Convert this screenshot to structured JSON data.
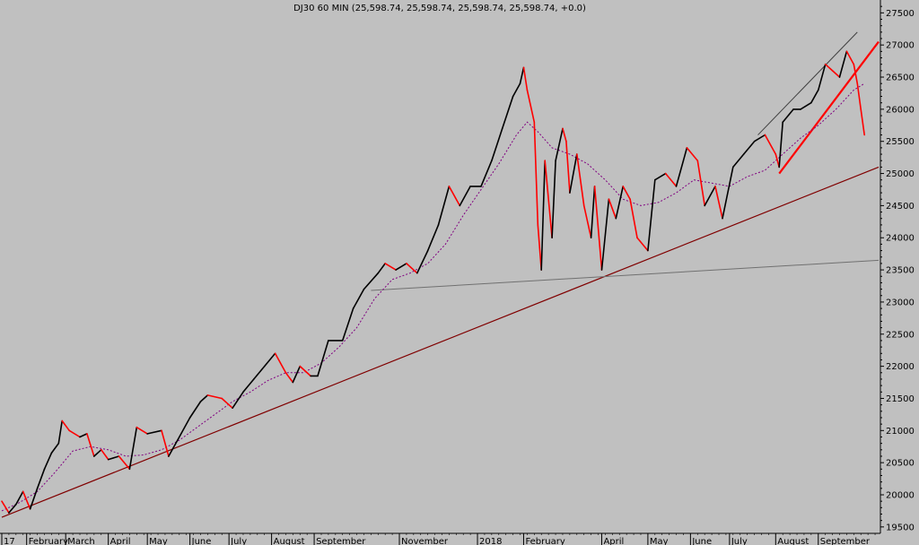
{
  "chart_data": {
    "type": "line",
    "title": "DJ30 60 MIN (25,598.74, 25,598.74, 25,598.74, 25,598.74, +0.0)",
    "xlabel": "",
    "ylabel": "",
    "ylim": [
      19400,
      27700
    ],
    "y_ticks": [
      19500,
      20000,
      20500,
      21000,
      21500,
      22000,
      22500,
      23000,
      23500,
      24000,
      24500,
      25000,
      25500,
      26000,
      26500,
      27000,
      27500
    ],
    "x_ticks": [
      "17",
      "February",
      "March",
      "April",
      "May",
      "June",
      "July",
      "August",
      "September",
      "November",
      "2018",
      "February",
      "April",
      "May",
      "June",
      "July",
      "August",
      "September"
    ],
    "x_tick_index": [
      0,
      7,
      18,
      30,
      41,
      53,
      64,
      76,
      88,
      112,
      134,
      147,
      169,
      182,
      194,
      205,
      218,
      230
    ],
    "x_range": [
      0,
      247
    ],
    "grid": false,
    "colors": {
      "background": "#c0c0c0",
      "price_up": "#000000",
      "price_down": "#ff0000",
      "moving_average": "#800080",
      "trendline": "#800000",
      "horizontal_line": "#707070",
      "recent_trendline": "#ff0000",
      "channel_line": "#404040"
    },
    "series": [
      {
        "key": "price",
        "points": [
          [
            0,
            19900
          ],
          [
            2,
            19720
          ],
          [
            4,
            19850
          ],
          [
            6,
            20050
          ],
          [
            8,
            19780
          ],
          [
            10,
            20100
          ],
          [
            12,
            20400
          ],
          [
            14,
            20650
          ],
          [
            16,
            20800
          ],
          [
            17,
            21150
          ],
          [
            19,
            21000
          ],
          [
            22,
            20900
          ],
          [
            24,
            20950
          ],
          [
            26,
            20600
          ],
          [
            28,
            20700
          ],
          [
            30,
            20550
          ],
          [
            33,
            20600
          ],
          [
            36,
            20400
          ],
          [
            38,
            21050
          ],
          [
            41,
            20950
          ],
          [
            45,
            21000
          ],
          [
            47,
            20600
          ],
          [
            50,
            20900
          ],
          [
            53,
            21200
          ],
          [
            56,
            21450
          ],
          [
            58,
            21550
          ],
          [
            62,
            21500
          ],
          [
            65,
            21350
          ],
          [
            68,
            21600
          ],
          [
            71,
            21800
          ],
          [
            74,
            22000
          ],
          [
            77,
            22200
          ],
          [
            80,
            21900
          ],
          [
            82,
            21750
          ],
          [
            84,
            22000
          ],
          [
            87,
            21850
          ],
          [
            89,
            21850
          ],
          [
            92,
            22400
          ],
          [
            96,
            22400
          ],
          [
            99,
            22900
          ],
          [
            102,
            23200
          ],
          [
            106,
            23450
          ],
          [
            108,
            23600
          ],
          [
            111,
            23500
          ],
          [
            114,
            23600
          ],
          [
            117,
            23450
          ],
          [
            120,
            23800
          ],
          [
            123,
            24200
          ],
          [
            126,
            24800
          ],
          [
            129,
            24500
          ],
          [
            132,
            24800
          ],
          [
            135,
            24800
          ],
          [
            138,
            25200
          ],
          [
            141,
            25700
          ],
          [
            144,
            26200
          ],
          [
            146,
            26400
          ],
          [
            147,
            26650
          ],
          [
            148,
            26300
          ],
          [
            150,
            25800
          ],
          [
            151,
            24200
          ],
          [
            152,
            23500
          ],
          [
            153,
            25200
          ],
          [
            155,
            24000
          ],
          [
            156,
            25200
          ],
          [
            158,
            25700
          ],
          [
            159,
            25500
          ],
          [
            160,
            24700
          ],
          [
            162,
            25300
          ],
          [
            164,
            24500
          ],
          [
            166,
            24000
          ],
          [
            167,
            24800
          ],
          [
            169,
            23500
          ],
          [
            171,
            24600
          ],
          [
            173,
            24300
          ],
          [
            175,
            24800
          ],
          [
            177,
            24600
          ],
          [
            179,
            24000
          ],
          [
            182,
            23800
          ],
          [
            184,
            24900
          ],
          [
            187,
            25000
          ],
          [
            190,
            24800
          ],
          [
            193,
            25400
          ],
          [
            196,
            25200
          ],
          [
            198,
            24500
          ],
          [
            201,
            24800
          ],
          [
            203,
            24300
          ],
          [
            206,
            25100
          ],
          [
            209,
            25300
          ],
          [
            212,
            25500
          ],
          [
            215,
            25600
          ],
          [
            218,
            25300
          ],
          [
            219,
            25100
          ],
          [
            220,
            25800
          ],
          [
            223,
            26000
          ],
          [
            225,
            26000
          ],
          [
            228,
            26100
          ],
          [
            230,
            26300
          ],
          [
            232,
            26700
          ],
          [
            234,
            26600
          ],
          [
            236,
            26500
          ],
          [
            238,
            26900
          ],
          [
            240,
            26700
          ],
          [
            241,
            26400
          ],
          [
            242,
            26000
          ],
          [
            243,
            25600
          ]
        ]
      },
      {
        "key": "moving_average",
        "points": [
          [
            0,
            19750
          ],
          [
            5,
            19880
          ],
          [
            10,
            20050
          ],
          [
            15,
            20350
          ],
          [
            20,
            20680
          ],
          [
            25,
            20750
          ],
          [
            30,
            20700
          ],
          [
            35,
            20600
          ],
          [
            40,
            20620
          ],
          [
            45,
            20700
          ],
          [
            50,
            20850
          ],
          [
            55,
            21050
          ],
          [
            60,
            21250
          ],
          [
            65,
            21450
          ],
          [
            70,
            21600
          ],
          [
            75,
            21780
          ],
          [
            80,
            21900
          ],
          [
            85,
            21900
          ],
          [
            90,
            22050
          ],
          [
            95,
            22300
          ],
          [
            100,
            22600
          ],
          [
            105,
            23050
          ],
          [
            110,
            23350
          ],
          [
            115,
            23450
          ],
          [
            120,
            23600
          ],
          [
            125,
            23900
          ],
          [
            130,
            24350
          ],
          [
            135,
            24750
          ],
          [
            140,
            25150
          ],
          [
            145,
            25600
          ],
          [
            148,
            25800
          ],
          [
            151,
            25650
          ],
          [
            155,
            25400
          ],
          [
            160,
            25300
          ],
          [
            165,
            25150
          ],
          [
            170,
            24900
          ],
          [
            175,
            24600
          ],
          [
            180,
            24500
          ],
          [
            185,
            24550
          ],
          [
            190,
            24700
          ],
          [
            195,
            24900
          ],
          [
            200,
            24850
          ],
          [
            205,
            24800
          ],
          [
            210,
            24950
          ],
          [
            215,
            25050
          ],
          [
            220,
            25300
          ],
          [
            225,
            25550
          ],
          [
            230,
            25750
          ],
          [
            235,
            26000
          ],
          [
            240,
            26300
          ],
          [
            243,
            26400
          ]
        ]
      }
    ],
    "trendlines": [
      {
        "key": "long_term_support",
        "from": [
          0,
          19650
        ],
        "to": [
          247,
          25100
        ]
      },
      {
        "key": "horizontal_support",
        "from": [
          104,
          23180
        ],
        "to": [
          247,
          23650
        ]
      },
      {
        "key": "recent_support",
        "from": [
          219,
          25000
        ],
        "to": [
          247,
          27050
        ]
      },
      {
        "key": "channel_top",
        "from": [
          213,
          25600
        ],
        "to": [
          241,
          27200
        ]
      }
    ]
  }
}
